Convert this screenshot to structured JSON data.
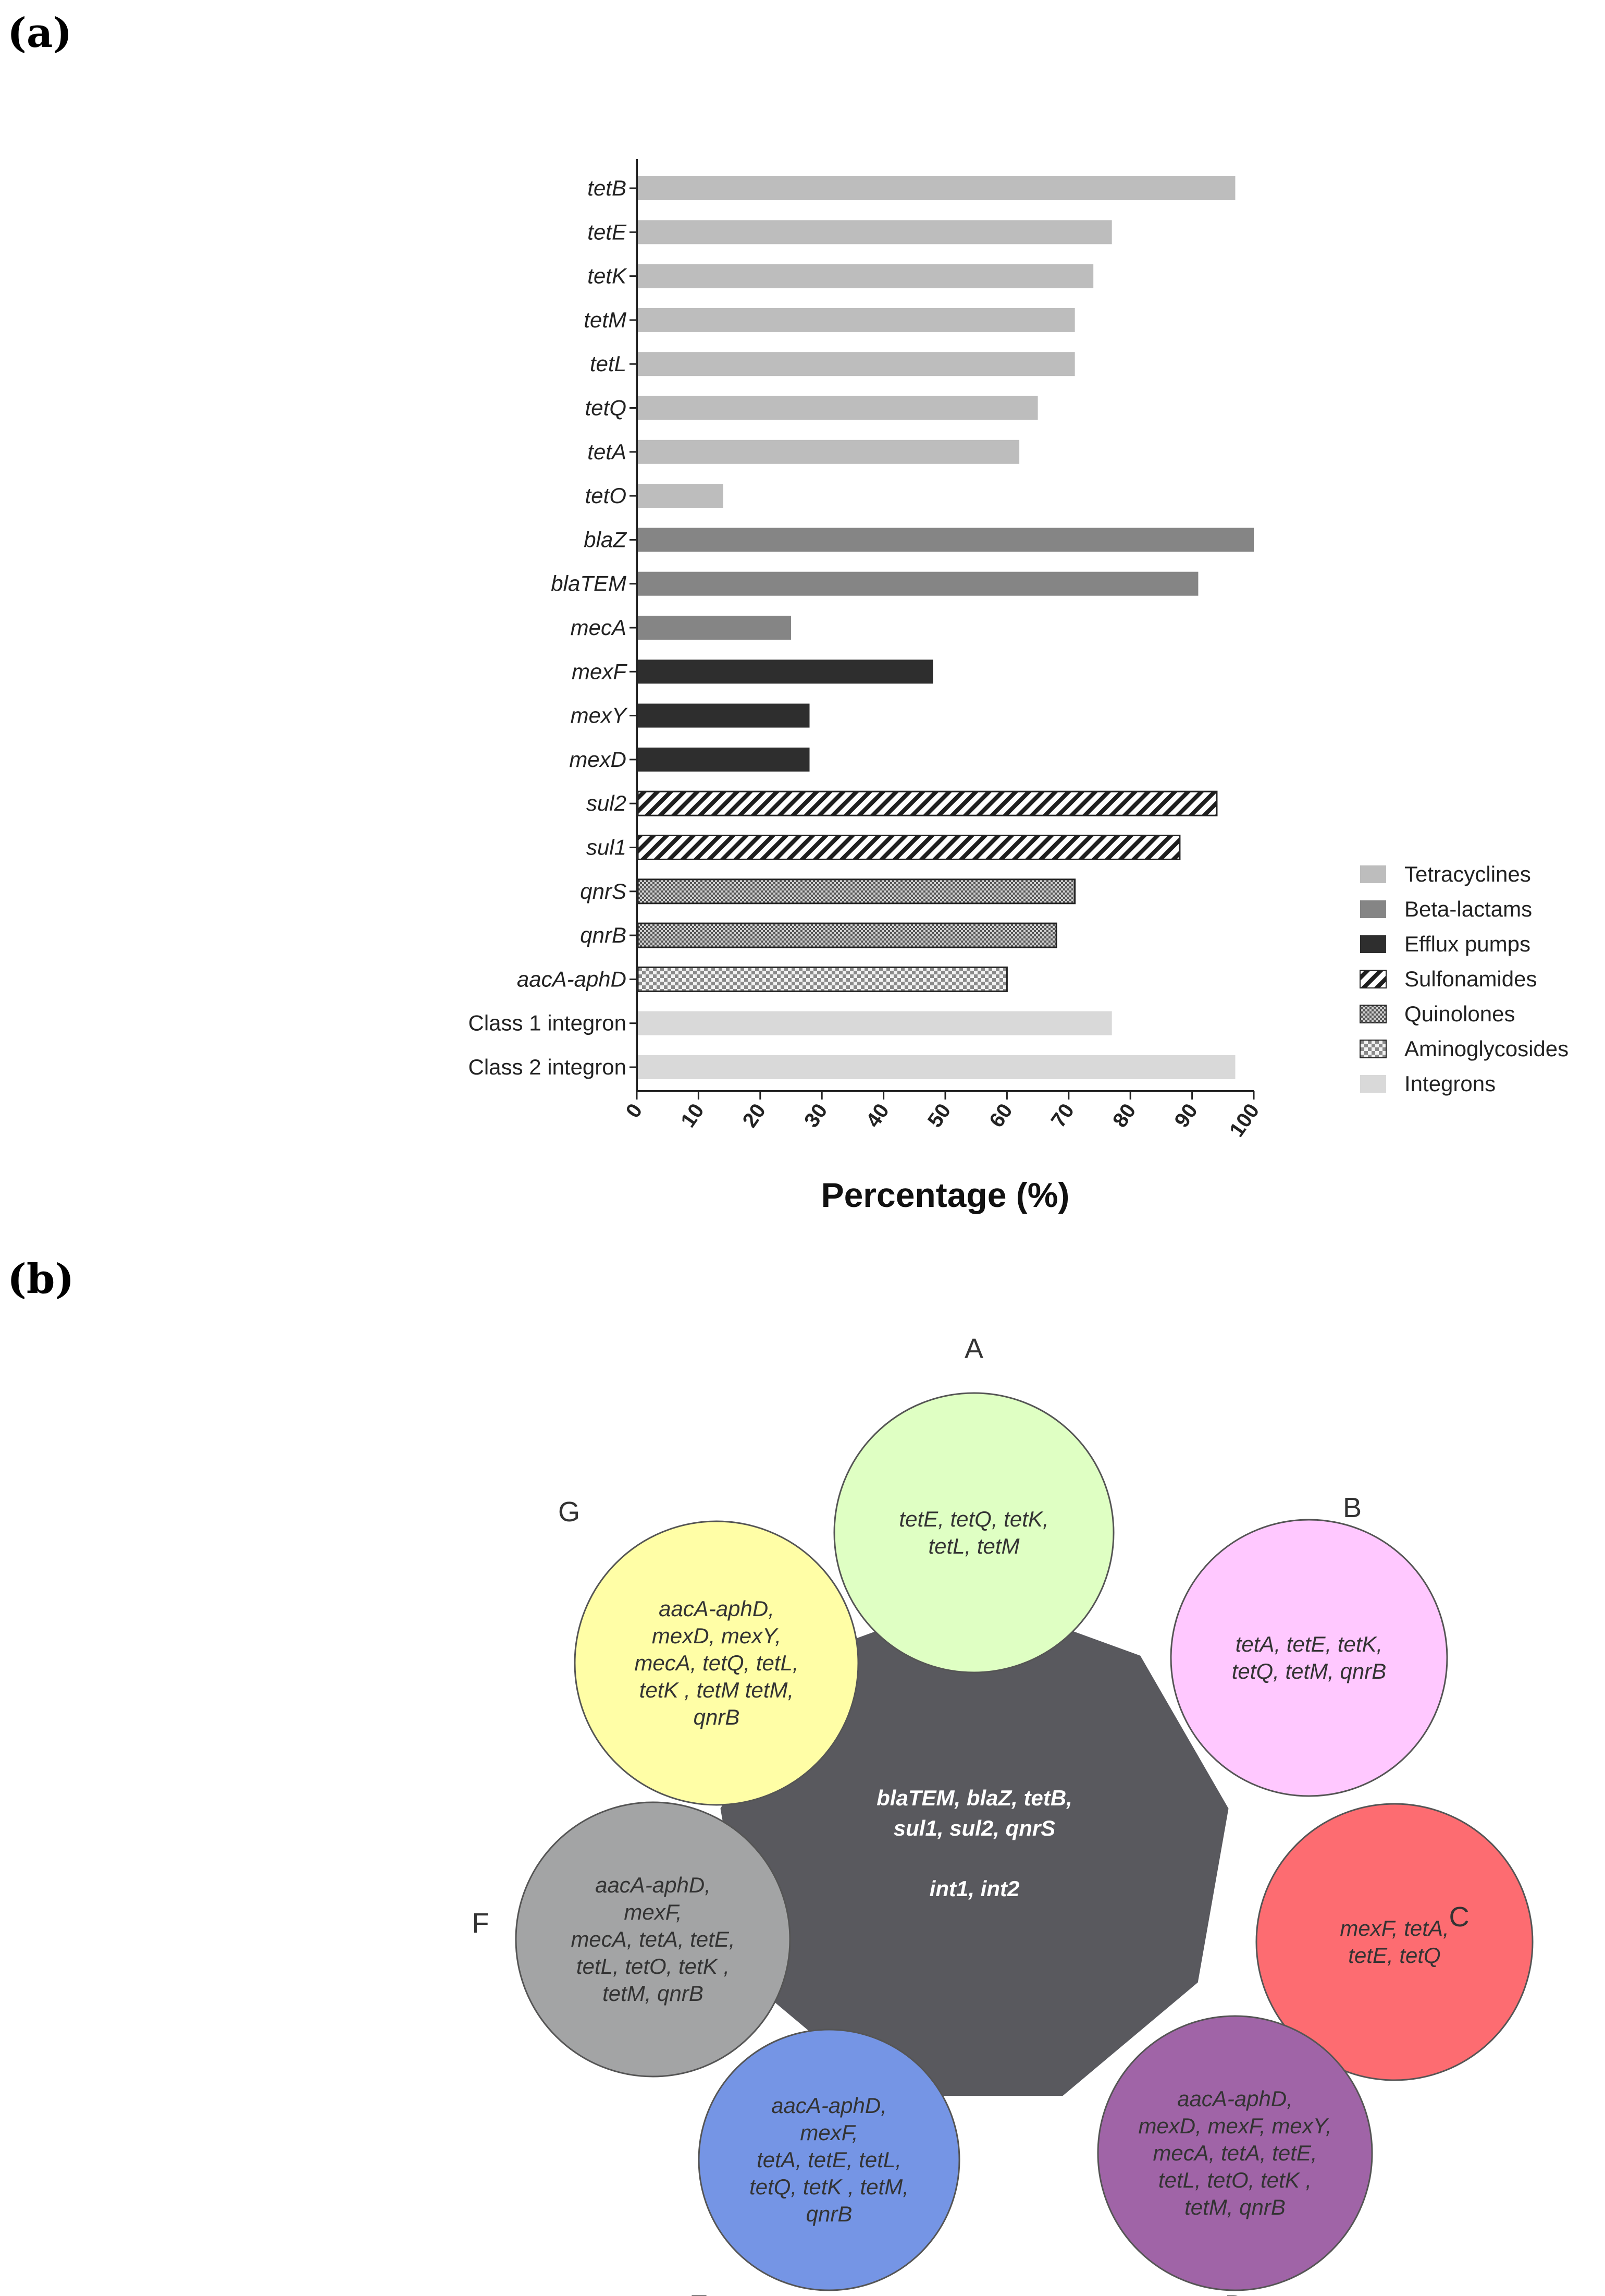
{
  "panel_a_label": "(a)",
  "panel_b_label": "(b)",
  "chart_data": {
    "type": "bar",
    "orientation": "horizontal",
    "title": "",
    "xlabel": "Percentage (%)",
    "ylabel": "",
    "xlim": [
      0,
      100
    ],
    "xticks": [
      "0",
      "10",
      "20",
      "30",
      "40",
      "50",
      "60",
      "70",
      "80",
      "90",
      "100"
    ],
    "categories": [
      "tetB",
      "tetE",
      "tetK",
      "tetM",
      "tetL",
      "tetQ",
      "tetA",
      "tetO",
      "blaZ",
      "blaTEM",
      "mecA",
      "mexF",
      "mexY",
      "mexD",
      "sul2",
      "sul1",
      "qnrS",
      "qnrB",
      "aacA-aphD",
      "Class 1 integron",
      "Class 2 integron"
    ],
    "values": [
      97,
      77,
      74,
      71,
      71,
      65,
      62,
      14,
      100,
      91,
      25,
      48,
      28,
      28,
      94,
      88,
      71,
      68,
      60,
      77,
      97
    ],
    "groups": [
      "Tetracyclines",
      "Tetracyclines",
      "Tetracyclines",
      "Tetracyclines",
      "Tetracyclines",
      "Tetracyclines",
      "Tetracyclines",
      "Tetracyclines",
      "Beta-lactams",
      "Beta-lactams",
      "Beta-lactams",
      "Efflux pumps",
      "Efflux pumps",
      "Efflux pumps",
      "Sulfonamides",
      "Sulfonamides",
      "Quinolones",
      "Quinolones",
      "Aminoglycosides",
      "Integrons",
      "Integrons"
    ],
    "italic_categories": [
      "tetB",
      "tetE",
      "tetK",
      "tetM",
      "tetL",
      "tetQ",
      "tetA",
      "tetO",
      "blaZ",
      "blaTEM",
      "mecA",
      "mexF",
      "mexY",
      "mexD",
      "sul2",
      "sul1",
      "qnrS",
      "qnrB",
      "aacA-aphD"
    ],
    "legend": [
      {
        "name": "Tetracyclines",
        "color": "#bdbdbd",
        "pattern": "solid"
      },
      {
        "name": "Beta-lactams",
        "color": "#858585",
        "pattern": "solid"
      },
      {
        "name": "Efflux pumps",
        "color": "#2e2e2e",
        "pattern": "solid"
      },
      {
        "name": "Sulfonamides",
        "color": "#222222",
        "pattern": "diagonal"
      },
      {
        "name": "Quinolones",
        "color": "#666666",
        "pattern": "crosshatch"
      },
      {
        "name": "Aminoglycosides",
        "color": "#9a9a9a",
        "pattern": "checker"
      },
      {
        "name": "Integrons",
        "color": "#d9d9d9",
        "pattern": "solid"
      }
    ],
    "legend_position": "right"
  },
  "diagram": {
    "core": {
      "line1": "blaTEM, blaZ, tetB,",
      "line2": "sul1, sul2, qnrS",
      "line3": "int1, int2",
      "color": "#59595e"
    },
    "circles": [
      {
        "label": "A",
        "color": "#dfffc3",
        "lines": [
          "tetE, tetQ, tetK,",
          "tetL, tetM"
        ]
      },
      {
        "label": "B",
        "color": "#ffc8ff",
        "lines": [
          "tetA, tetE, tetK,",
          "tetQ, tetM, qnrB"
        ]
      },
      {
        "label": "C",
        "color": "#fd6c71",
        "lines": [
          "mexF, tetA,",
          "tetE, tetQ"
        ]
      },
      {
        "label": "D",
        "color": "#a064a7",
        "lines": [
          "aacA-aphD,",
          "mexD, mexF, mexY,",
          "mecA, tetA, tetE,",
          "tetL, tetO, tetK ,",
          "tetM, qnrB"
        ]
      },
      {
        "label": "E",
        "color": "#7595e5",
        "lines": [
          "aacA-aphD,",
          "mexF,",
          "tetA, tetE, tetL,",
          "tetQ, tetK , tetM,",
          "qnrB"
        ]
      },
      {
        "label": "F",
        "color": "#a3a4a5",
        "lines": [
          "aacA-aphD,",
          "mexF,",
          "mecA, tetA, tetE,",
          "tetL, tetO, tetK ,",
          "tetM, qnrB"
        ]
      },
      {
        "label": "G",
        "color": "#fffea6",
        "lines": [
          "aacA-aphD,",
          "mexD, mexY,",
          "mecA, tetQ, tetL,",
          "tetK , tetM tetM,",
          "qnrB"
        ]
      }
    ]
  }
}
